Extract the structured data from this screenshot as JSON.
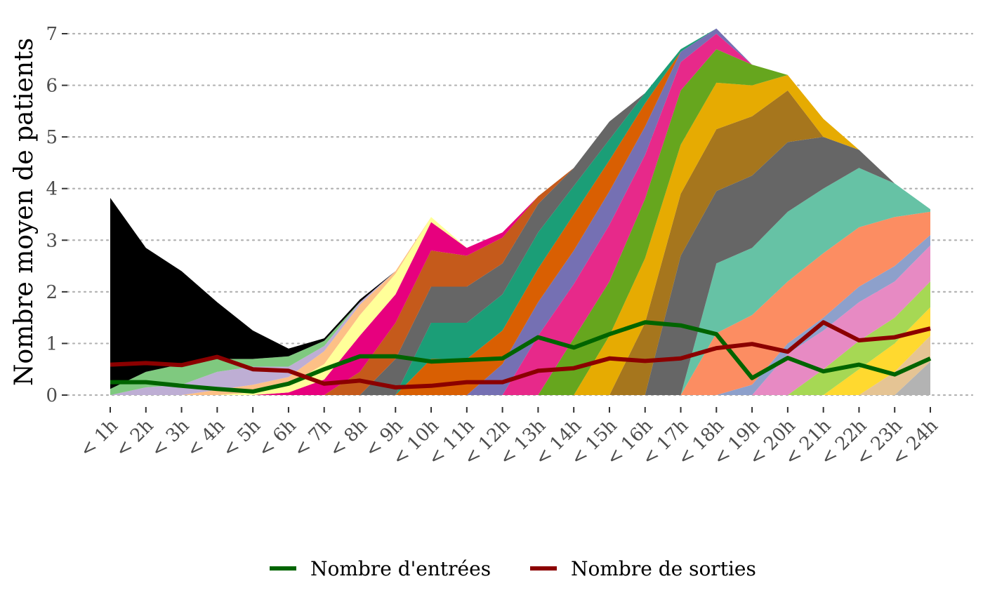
{
  "chart_data": {
    "type": "area",
    "ylabel": "Nombre moyen de patients",
    "xlabel": "",
    "ylim": [
      0,
      7.2
    ],
    "yticks": [
      0,
      1,
      2,
      3,
      4,
      5,
      6,
      7
    ],
    "grid": "horizontal dotted",
    "legend_position": "bottom",
    "categories": [
      "< 1h",
      "< 2h",
      "< 3h",
      "< 4h",
      "< 5h",
      "< 6h",
      "< 7h",
      "< 8h",
      "< 9h",
      "< 10h",
      "< 11h",
      "< 12h",
      "< 13h",
      "< 14h",
      "< 15h",
      "< 16h",
      "< 17h",
      "< 18h",
      "< 19h",
      "< 20h",
      "< 21h",
      "< 22h",
      "< 23h",
      "< 24h"
    ],
    "stacked_areas": [
      {
        "color": "#b3b3b3",
        "values": [
          0,
          0,
          0,
          0,
          0,
          0,
          0,
          0,
          0,
          0,
          0,
          0,
          0,
          0,
          0,
          0,
          0,
          0,
          0,
          0,
          0,
          0,
          0,
          0.65
        ]
      },
      {
        "color": "#e5c494",
        "values": [
          0,
          0,
          0,
          0,
          0,
          0,
          0,
          0,
          0,
          0,
          0,
          0,
          0,
          0,
          0,
          0,
          0,
          0,
          0,
          0,
          0,
          0,
          0.45,
          0.5
        ]
      },
      {
        "color": "#ffd92f",
        "values": [
          0,
          0,
          0,
          0,
          0,
          0,
          0,
          0,
          0,
          0,
          0,
          0,
          0,
          0,
          0,
          0,
          0,
          0,
          0,
          0,
          0,
          0.5,
          0.55,
          0.55
        ]
      },
      {
        "color": "#a6d854",
        "values": [
          0,
          0,
          0,
          0,
          0,
          0,
          0,
          0,
          0,
          0,
          0,
          0,
          0,
          0,
          0,
          0,
          0,
          0,
          0,
          0,
          0.5,
          0.55,
          0.5,
          0.5
        ]
      },
      {
        "color": "#e78ac3",
        "values": [
          0,
          0,
          0,
          0,
          0,
          0,
          0,
          0,
          0,
          0,
          0,
          0,
          0,
          0,
          0,
          0,
          0,
          0,
          0,
          0.8,
          0.75,
          0.75,
          0.7,
          0.7
        ]
      },
      {
        "color": "#8da0cb",
        "values": [
          0,
          0,
          0,
          0,
          0,
          0,
          0,
          0,
          0,
          0,
          0,
          0,
          0,
          0,
          0,
          0,
          0,
          0,
          0.2,
          0.2,
          0.25,
          0.3,
          0.3,
          0.2
        ]
      },
      {
        "color": "#fc8d62",
        "values": [
          0,
          0,
          0,
          0,
          0,
          0,
          0,
          0,
          0,
          0,
          0,
          0,
          0,
          0,
          0,
          0,
          0,
          1.2,
          1.35,
          1.2,
          1.25,
          1.15,
          0.95,
          0.45
        ]
      },
      {
        "color": "#66c2a5",
        "values": [
          0,
          0,
          0,
          0,
          0,
          0,
          0,
          0,
          0,
          0,
          0,
          0,
          0,
          0,
          0,
          0,
          0,
          1.35,
          1.3,
          1.35,
          1.25,
          1.15,
          0.65,
          0.05
        ]
      },
      {
        "color": "#666666",
        "values": [
          0,
          0,
          0,
          0,
          0,
          0,
          0,
          0,
          0,
          0,
          0,
          0,
          0,
          0,
          0,
          0,
          2.7,
          1.4,
          1.4,
          1.35,
          1.0,
          0.35,
          0,
          0
        ]
      },
      {
        "color": "#a6761d",
        "values": [
          0,
          0,
          0,
          0,
          0,
          0,
          0,
          0,
          0,
          0,
          0,
          0,
          0,
          0,
          0,
          1.4,
          1.2,
          1.2,
          1.15,
          1.0,
          0,
          0,
          0,
          0
        ]
      },
      {
        "color": "#e6ab02",
        "values": [
          0,
          0,
          0,
          0,
          0,
          0,
          0,
          0,
          0,
          0,
          0,
          0,
          0,
          0,
          1.15,
          1.25,
          0.95,
          0.9,
          0.6,
          0.3,
          0.35,
          0,
          0,
          0
        ]
      },
      {
        "color": "#66a61e",
        "values": [
          0,
          0,
          0,
          0,
          0,
          0,
          0,
          0,
          0,
          0,
          0,
          0,
          0,
          1.1,
          1.05,
          1.15,
          1.05,
          0.65,
          0.4,
          0,
          0,
          0,
          0,
          0
        ]
      },
      {
        "color": "#e7298a",
        "values": [
          0,
          0,
          0,
          0,
          0,
          0,
          0,
          0,
          0,
          0,
          0,
          0,
          1.15,
          1.05,
          1.1,
          0.85,
          0.55,
          0.3,
          0,
          0,
          0,
          0,
          0,
          0
        ]
      },
      {
        "color": "#7570b3",
        "values": [
          0,
          0,
          0,
          0,
          0,
          0,
          0,
          0,
          0,
          0,
          0,
          0.6,
          0.65,
          0.65,
          0.65,
          0.55,
          0.2,
          0.1,
          0,
          0,
          0,
          0,
          0,
          0
        ]
      },
      {
        "color": "#d95f02",
        "values": [
          0,
          0,
          0,
          0,
          0,
          0,
          0,
          0,
          0,
          0.7,
          0.7,
          0.65,
          0.65,
          0.7,
          0.6,
          0.45,
          0,
          0,
          0,
          0,
          0,
          0,
          0,
          0
        ]
      },
      {
        "color": "#1b9e77",
        "values": [
          0,
          0,
          0,
          0,
          0,
          0,
          0,
          0,
          0,
          0.7,
          0.7,
          0.7,
          0.7,
          0.55,
          0.4,
          0.2,
          0.05,
          0,
          0,
          0,
          0,
          0,
          0,
          0
        ]
      },
      {
        "color": "#666666",
        "values": [
          0,
          0,
          0,
          0,
          0,
          0,
          0,
          0,
          0.7,
          0.7,
          0.7,
          0.6,
          0.55,
          0.35,
          0.35,
          0,
          0,
          0,
          0,
          0,
          0,
          0,
          0,
          0
        ]
      },
      {
        "color": "#c55a1b",
        "values": [
          0,
          0,
          0,
          0,
          0,
          0,
          0,
          0.45,
          0.7,
          0.7,
          0.6,
          0.5,
          0.15,
          0,
          0,
          0,
          0,
          0,
          0,
          0,
          0,
          0,
          0,
          0
        ]
      },
      {
        "color": "#e7007e",
        "values": [
          0,
          0,
          0,
          0,
          0,
          0.05,
          0.3,
          0.7,
          0.55,
          0.55,
          0.15,
          0.1,
          0,
          0,
          0,
          0,
          0,
          0,
          0,
          0,
          0,
          0,
          0,
          0
        ]
      },
      {
        "color": "#ffff99",
        "values": [
          0,
          0,
          0,
          0,
          0.05,
          0.15,
          0.3,
          0.4,
          0.4,
          0.1,
          0,
          0,
          0,
          0,
          0,
          0,
          0,
          0,
          0,
          0,
          0,
          0,
          0,
          0
        ]
      },
      {
        "color": "#fdc086",
        "values": [
          0,
          0,
          0,
          0.1,
          0.15,
          0.15,
          0.25,
          0.2,
          0.05,
          0,
          0,
          0,
          0,
          0,
          0,
          0,
          0,
          0,
          0,
          0,
          0,
          0,
          0,
          0
        ]
      },
      {
        "color": "#beaed4",
        "values": [
          0,
          0.15,
          0.2,
          0.35,
          0.35,
          0.2,
          0.1,
          0.05,
          0,
          0,
          0,
          0,
          0,
          0,
          0,
          0,
          0,
          0,
          0,
          0,
          0,
          0,
          0,
          0
        ]
      },
      {
        "color": "#7fc97f",
        "values": [
          0.12,
          0.3,
          0.4,
          0.25,
          0.15,
          0.2,
          0.1,
          0,
          0,
          0,
          0,
          0,
          0,
          0,
          0,
          0,
          0,
          0,
          0,
          0,
          0,
          0,
          0,
          0
        ]
      },
      {
        "color": "#000000",
        "values": [
          3.7,
          2.4,
          1.8,
          1.1,
          0.55,
          0.15,
          0.05,
          0.05,
          0,
          0,
          0,
          0,
          0,
          0,
          0,
          0,
          0,
          0,
          0,
          0,
          0,
          0,
          0,
          0
        ]
      }
    ],
    "series": [
      {
        "name": "Nombre d'entrées",
        "color": "#006400",
        "values": [
          0.25,
          0.25,
          0.18,
          0.12,
          0.07,
          0.22,
          0.5,
          0.75,
          0.75,
          0.65,
          0.68,
          0.71,
          1.12,
          0.92,
          1.18,
          1.41,
          1.35,
          1.18,
          0.33,
          0.72,
          0.46,
          0.59,
          0.4,
          0.71
        ]
      },
      {
        "name": "Nombre de sorties",
        "color": "#8b0000",
        "values": [
          0.59,
          0.62,
          0.58,
          0.74,
          0.5,
          0.47,
          0.22,
          0.28,
          0.15,
          0.18,
          0.25,
          0.25,
          0.47,
          0.52,
          0.71,
          0.66,
          0.71,
          0.91,
          0.99,
          0.84,
          1.41,
          1.06,
          1.12,
          1.29
        ]
      }
    ]
  }
}
